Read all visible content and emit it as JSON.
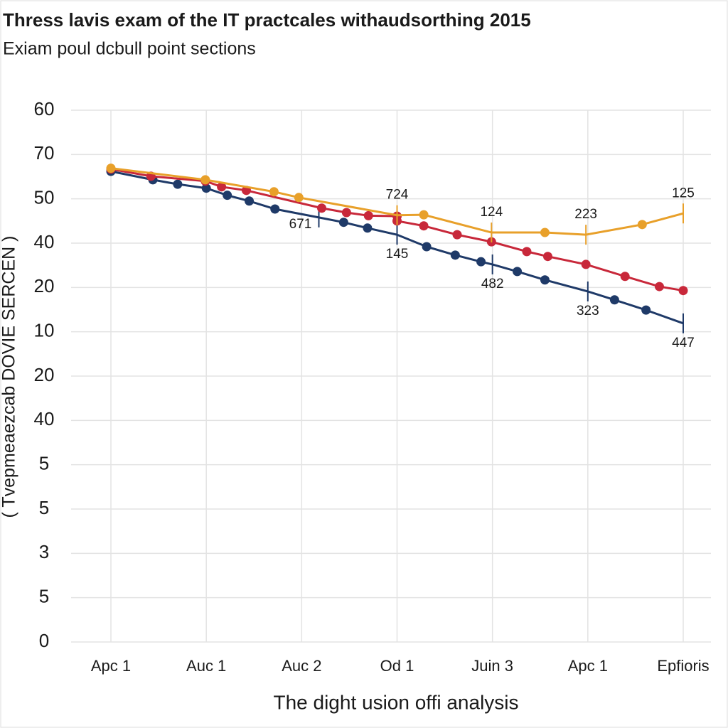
{
  "chart_data": {
    "type": "line",
    "title": "Thress lavis exam of the IT practcales withaudsorthing 2015",
    "subtitle": "Exiam poul dcbull point sections",
    "x_label": "The dight usion offi analysis",
    "y_label": "( Tvepmeaezcab DOVIE SERCEN )",
    "categories": [
      "Apc 1",
      "Auc 1",
      "Auc 2",
      "Od 1",
      "Juin 3",
      "Apc 1",
      "Epfioris"
    ],
    "xlim": [
      0,
      6
    ],
    "ylim": [
      0,
      12
    ],
    "yticks": [
      0,
      1,
      2,
      3,
      4,
      5,
      6,
      7,
      8,
      9,
      10,
      11,
      12
    ],
    "ytick_labels": [
      "0",
      "5",
      "3",
      "5",
      "5",
      "40",
      "20",
      "10",
      "20",
      "40",
      "50",
      "70",
      "60"
    ],
    "grid": true,
    "series": [
      {
        "color": "#1f3a68",
        "x": [
          0,
          0.44,
          0.7,
          1.0,
          1.22,
          1.45,
          1.72,
          2.18,
          2.44,
          2.69,
          3.0,
          3.31,
          3.61,
          3.88,
          4.0,
          4.26,
          4.55,
          5.0,
          5.28,
          5.61,
          6.0
        ],
        "values": [
          10.62,
          10.43,
          10.33,
          10.24,
          10.08,
          9.95,
          9.77,
          9.58,
          9.47,
          9.34,
          9.19,
          8.92,
          8.73,
          8.58,
          8.52,
          8.36,
          8.17,
          7.91,
          7.72,
          7.49,
          7.19
        ],
        "notes": [
          null,
          null,
          null,
          null,
          null,
          null,
          null,
          "671",
          null,
          null,
          "145",
          null,
          null,
          null,
          "482",
          null,
          null,
          "323",
          null,
          null,
          "447"
        ]
      },
      {
        "color": "#c8283a",
        "x": [
          0,
          0.42,
          0.99,
          1.16,
          1.42,
          2.21,
          2.47,
          2.7,
          3.0,
          3.0,
          3.28,
          3.63,
          3.99,
          4.36,
          4.58,
          4.98,
          5.39,
          5.75,
          6.0
        ],
        "values": [
          10.67,
          10.51,
          10.4,
          10.27,
          10.19,
          9.79,
          9.69,
          9.62,
          9.61,
          9.5,
          9.39,
          9.19,
          9.03,
          8.81,
          8.7,
          8.52,
          8.25,
          8.02,
          7.93
        ]
      },
      {
        "color": "#e8a02a",
        "x": [
          0,
          0.99,
          1.71,
          1.97,
          3.0,
          3.28,
          3.99,
          4.55,
          4.98,
          5.57,
          6.0
        ],
        "values": [
          10.69,
          10.43,
          10.16,
          10.03,
          9.63,
          9.64,
          9.24,
          9.24,
          9.19,
          9.42,
          9.67
        ],
        "notes": [
          null,
          null,
          null,
          null,
          "724",
          null,
          "124",
          null,
          "223",
          null,
          "125"
        ]
      }
    ]
  }
}
